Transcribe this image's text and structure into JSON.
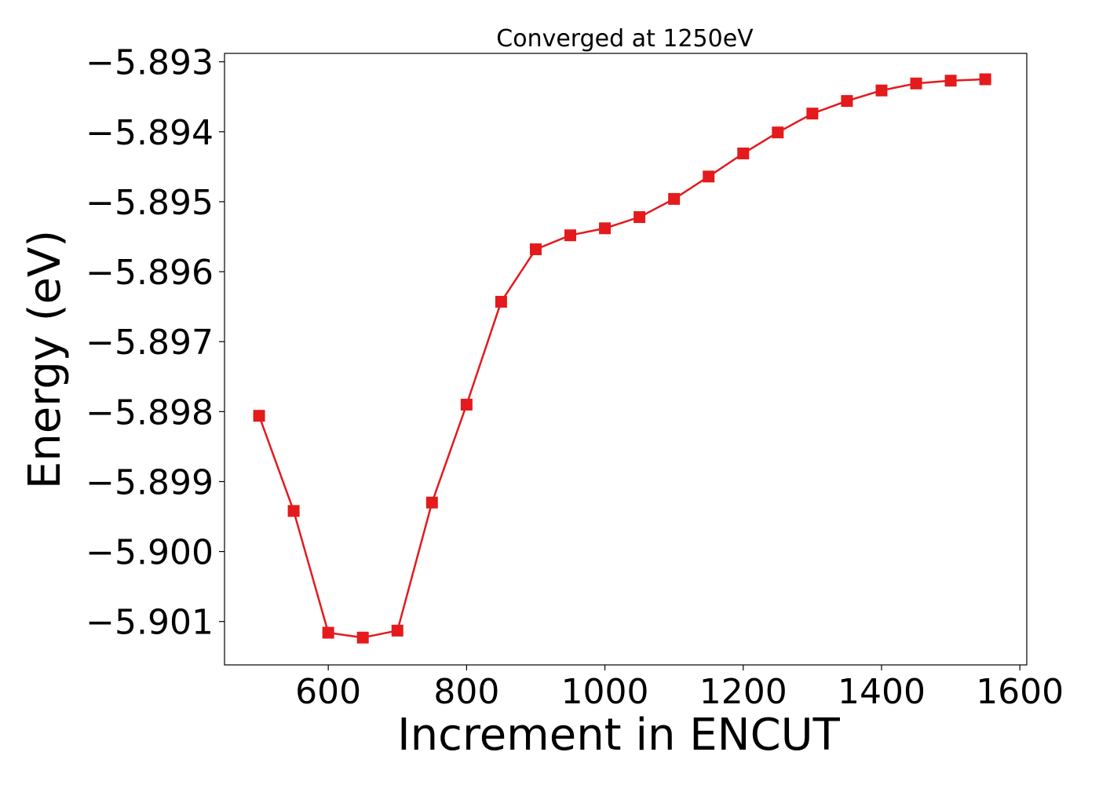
{
  "chart_data": {
    "type": "line",
    "title": "Converged at 1250eV",
    "xlabel": "Increment in ENCUT",
    "ylabel": "Energy (eV)",
    "xlim": [
      450,
      1610
    ],
    "ylim": [
      -5.90162,
      -5.89288
    ],
    "x_ticks": [
      600,
      800,
      1000,
      1200,
      1400,
      1600
    ],
    "x_tick_labels": [
      "600",
      "800",
      "1000",
      "1200",
      "1400",
      "1600"
    ],
    "y_ticks": [
      -5.893,
      -5.894,
      -5.895,
      -5.896,
      -5.897,
      -5.898,
      -5.899,
      -5.9,
      -5.901
    ],
    "y_tick_labels": [
      "−5.893",
      "−5.894",
      "−5.895",
      "−5.896",
      "−5.897",
      "−5.898",
      "−5.899",
      "−5.900",
      "−5.901"
    ],
    "grid": false,
    "series": [
      {
        "color": "#e41a1c",
        "marker": "square",
        "x": [
          500,
          550,
          600,
          650,
          700,
          750,
          800,
          850,
          900,
          950,
          1000,
          1050,
          1100,
          1150,
          1200,
          1250,
          1300,
          1350,
          1400,
          1450,
          1500,
          1550
        ],
        "y": [
          -5.89806,
          -5.89942,
          -5.90116,
          -5.90123,
          -5.90113,
          -5.8993,
          -5.8979,
          -5.89643,
          -5.89568,
          -5.89548,
          -5.89538,
          -5.89522,
          -5.89496,
          -5.89464,
          -5.89431,
          -5.89401,
          -5.89374,
          -5.89356,
          -5.89341,
          -5.89331,
          -5.89327,
          -5.89325
        ]
      }
    ]
  }
}
